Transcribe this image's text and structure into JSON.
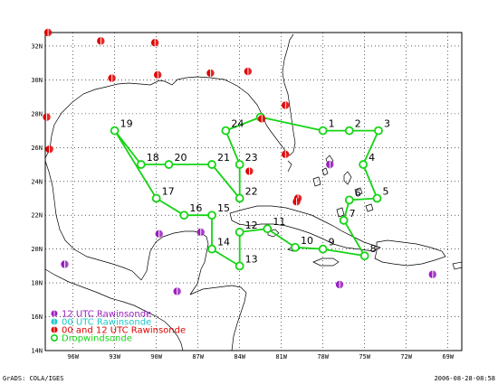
{
  "map": {
    "lat_labels": [
      "32N",
      "30N",
      "28N",
      "26N",
      "24N",
      "22N",
      "20N",
      "18N",
      "16N",
      "14N"
    ],
    "lon_labels": [
      "96W",
      "93W",
      "90W",
      "87W",
      "84W",
      "81W",
      "78W",
      "75W",
      "72W",
      "69W"
    ],
    "lat_values": [
      32,
      30,
      28,
      26,
      24,
      22,
      20,
      18,
      16,
      14
    ],
    "lon_values": [
      96,
      93,
      90,
      87,
      84,
      81,
      78,
      75,
      72,
      69
    ],
    "grid": true
  },
  "colors": {
    "twelve_utc": "#9a1fbf",
    "zero_utc": "#1ec8c8",
    "zero_and_twelve": "#e00000",
    "dropwindsonde": "#14d414"
  },
  "rawinsondes": [
    {
      "lon": 97.8,
      "lat": 32.8,
      "type": "zero_and_twelve"
    },
    {
      "lon": 94.0,
      "lat": 32.3,
      "type": "zero_and_twelve"
    },
    {
      "lon": 90.1,
      "lat": 32.2,
      "type": "zero_and_twelve"
    },
    {
      "lon": 93.2,
      "lat": 30.1,
      "type": "zero_and_twelve"
    },
    {
      "lon": 89.9,
      "lat": 30.3,
      "type": "zero_and_twelve"
    },
    {
      "lon": 86.1,
      "lat": 30.4,
      "type": "zero_and_twelve"
    },
    {
      "lon": 83.4,
      "lat": 30.5,
      "type": "zero_and_twelve"
    },
    {
      "lon": 80.7,
      "lat": 28.5,
      "type": "zero_and_twelve"
    },
    {
      "lon": 97.9,
      "lat": 27.8,
      "type": "zero_and_twelve"
    },
    {
      "lon": 82.4,
      "lat": 27.7,
      "type": "zero_and_twelve"
    },
    {
      "lon": 97.7,
      "lat": 25.9,
      "type": "zero_and_twelve"
    },
    {
      "lon": 80.7,
      "lat": 25.6,
      "type": "zero_and_twelve"
    },
    {
      "lon": 83.3,
      "lat": 24.6,
      "type": "zero_and_twelve"
    },
    {
      "lon": 79.8,
      "lat": 23.0,
      "type": "zero_and_twelve"
    },
    {
      "lon": 79.9,
      "lat": 22.8,
      "type": "zero_and_twelve"
    },
    {
      "lon": 77.5,
      "lat": 25.0,
      "type": "twelve_utc"
    },
    {
      "lon": 89.8,
      "lat": 20.9,
      "type": "twelve_utc"
    },
    {
      "lon": 86.8,
      "lat": 21.0,
      "type": "twelve_utc"
    },
    {
      "lon": 96.6,
      "lat": 19.1,
      "type": "twelve_utc"
    },
    {
      "lon": 88.5,
      "lat": 17.5,
      "type": "twelve_utc"
    },
    {
      "lon": 76.8,
      "lat": 17.9,
      "type": "twelve_utc"
    },
    {
      "lon": 70.1,
      "lat": 18.5,
      "type": "twelve_utc"
    }
  ],
  "dropwindsondes": [
    {
      "label": "1",
      "lon": 78.0,
      "lat": 27.0
    },
    {
      "label": "2",
      "lon": 76.1,
      "lat": 27.0
    },
    {
      "label": "3",
      "lon": 74.0,
      "lat": 27.0
    },
    {
      "label": "4",
      "lon": 75.1,
      "lat": 25.0
    },
    {
      "label": "5",
      "lon": 74.1,
      "lat": 23.0
    },
    {
      "label": "6",
      "lon": 76.1,
      "lat": 22.9
    },
    {
      "label": "7",
      "lon": 76.5,
      "lat": 21.7
    },
    {
      "label": "8",
      "lon": 75.0,
      "lat": 19.6
    },
    {
      "label": "9",
      "lon": 78.0,
      "lat": 20.0
    },
    {
      "label": "10",
      "lon": 80.0,
      "lat": 20.1
    },
    {
      "label": "11",
      "lon": 82.0,
      "lat": 21.2
    },
    {
      "label": "12",
      "lon": 84.0,
      "lat": 21.0
    },
    {
      "label": "13",
      "lon": 84.0,
      "lat": 19.0
    },
    {
      "label": "14",
      "lon": 86.0,
      "lat": 20.0
    },
    {
      "label": "15",
      "lon": 86.0,
      "lat": 22.0
    },
    {
      "label": "16",
      "lon": 88.0,
      "lat": 22.0
    },
    {
      "label": "17",
      "lon": 90.0,
      "lat": 23.0
    },
    {
      "label": "18",
      "lon": 91.1,
      "lat": 25.0
    },
    {
      "label": "19",
      "lon": 93.0,
      "lat": 27.0
    },
    {
      "label": "20",
      "lon": 89.1,
      "lat": 25.0
    },
    {
      "label": "21",
      "lon": 86.0,
      "lat": 25.0
    },
    {
      "label": "22",
      "lon": 84.0,
      "lat": 23.0
    },
    {
      "label": "23",
      "lon": 84.0,
      "lat": 25.0
    },
    {
      "label": "24",
      "lon": 85.0,
      "lat": 27.0
    }
  ],
  "flight_track": [
    "9",
    "8",
    "7",
    "6",
    "5",
    "4",
    "3",
    "2",
    "1",
    "fl_pt",
    "24",
    "23",
    "22",
    "21",
    "20",
    "18",
    "19",
    "17",
    "16",
    "15",
    "14",
    "13",
    "12",
    "11",
    "10",
    "9"
  ],
  "extra_points": {
    "fl_pt": {
      "lon": 82.5,
      "lat": 27.8
    }
  },
  "legend": [
    {
      "key": "twelve_utc",
      "label": "12 UTC Rawinsonde"
    },
    {
      "key": "zero_utc",
      "label": "00 UTC Rawinsonde"
    },
    {
      "key": "zero_and_twelve",
      "label": "00 and 12 UTC Rawinsonde"
    },
    {
      "key": "dropwindsonde",
      "label": "Dropwindsonde"
    }
  ],
  "footer": {
    "left": "GrADS: COLA/IGES",
    "right": "2006-08-28-08:58"
  }
}
